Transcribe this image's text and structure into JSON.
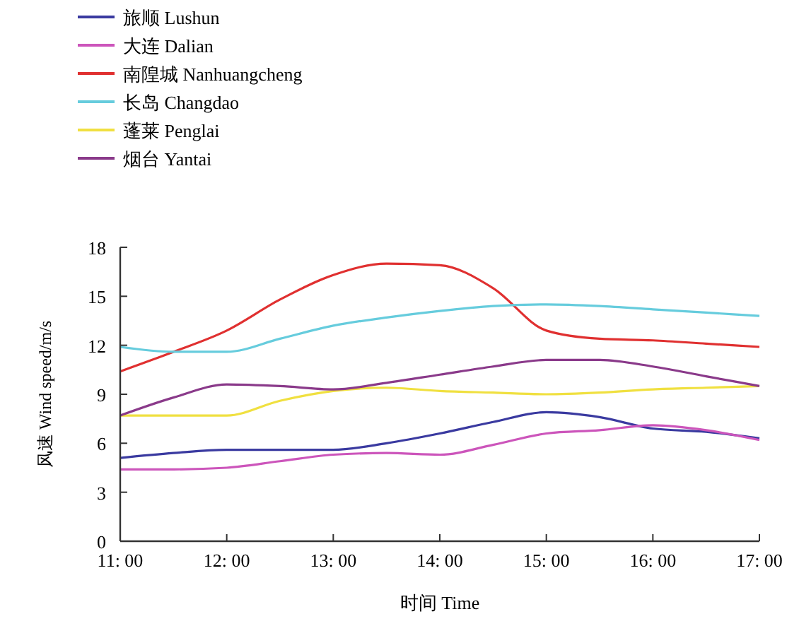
{
  "chart_data": {
    "type": "line",
    "xlabel": "时间 Time",
    "ylabel": "风速 Wind speed/m/s",
    "categories": [
      "11: 00",
      null,
      "12: 00",
      null,
      "13: 00",
      null,
      "14: 00",
      null,
      "15: 00",
      null,
      "16: 00",
      null,
      "17: 00"
    ],
    "ylim": [
      0,
      18
    ],
    "yticks": [
      0,
      3,
      6,
      9,
      12,
      15,
      18
    ],
    "legend": "top left",
    "grid": false,
    "line_style": "solid",
    "series": [
      {
        "name": "旅顺 Lushun",
        "color": "#3a3aa0",
        "values": [
          5.1,
          5.4,
          5.6,
          5.6,
          5.6,
          6.0,
          6.6,
          7.3,
          7.9,
          7.6,
          6.9,
          6.7,
          6.3
        ]
      },
      {
        "name": "大连 Dalian",
        "color": "#cc55bb",
        "values": [
          4.4,
          4.4,
          4.5,
          4.9,
          5.3,
          5.4,
          5.3,
          5.9,
          6.6,
          6.8,
          7.1,
          6.8,
          6.2
        ]
      },
      {
        "name": "南隍城 Nanhuangcheng",
        "color": "#e03030",
        "values": [
          10.4,
          11.6,
          12.9,
          14.8,
          16.3,
          17.0,
          16.9,
          15.5,
          12.9,
          12.4,
          12.3,
          12.1,
          11.9
        ]
      },
      {
        "name": "长岛 Changdao",
        "color": "#66ccdd",
        "values": [
          11.9,
          11.6,
          11.6,
          12.4,
          13.2,
          13.7,
          14.1,
          14.4,
          14.5,
          14.4,
          14.2,
          14.0,
          13.8
        ]
      },
      {
        "name": "蓬莱 Penglai",
        "color": "#f0e040",
        "values": [
          7.7,
          7.7,
          7.7,
          8.6,
          9.2,
          9.4,
          9.2,
          9.1,
          9.0,
          9.1,
          9.3,
          9.4,
          9.5
        ]
      },
      {
        "name": "烟台 Yantai",
        "color": "#8a3a8a",
        "values": [
          7.7,
          8.8,
          9.6,
          9.5,
          9.3,
          9.7,
          10.2,
          10.7,
          11.1,
          11.1,
          10.7,
          10.1,
          9.5
        ]
      }
    ]
  }
}
